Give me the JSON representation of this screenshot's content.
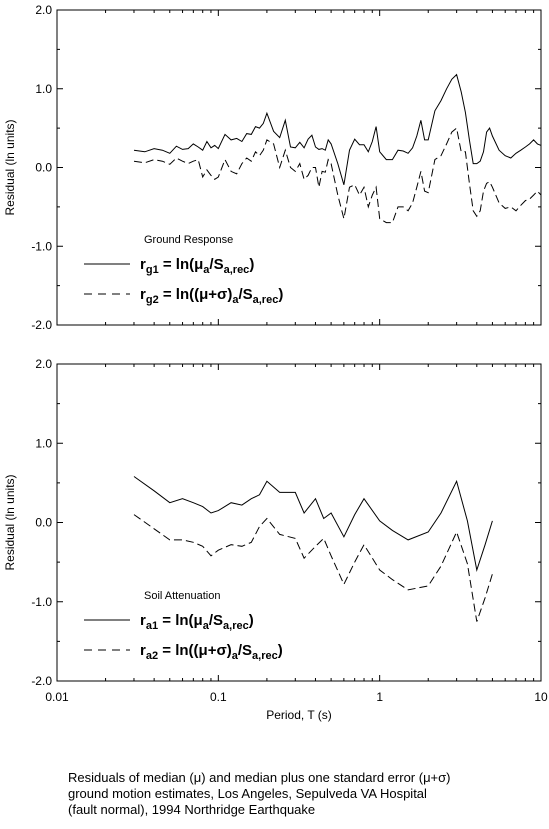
{
  "chart_data": [
    {
      "type": "line",
      "title": "",
      "xlabel": "",
      "ylabel": "Residual (ln units)",
      "xscale": "log",
      "xlim": [
        0.01,
        10
      ],
      "ylim": [
        -2.0,
        2.0
      ],
      "xticks": [
        0.01,
        0.1,
        1,
        10
      ],
      "xtick_labels": [
        "",
        "",
        "",
        ""
      ],
      "yticks": [
        2.0,
        1.0,
        0.0,
        -1.0,
        -2.0
      ],
      "ytick_labels": [
        "2.0",
        "1.0",
        "0.0",
        "-1.0",
        "-2.0"
      ],
      "grid": false,
      "legend": {
        "title": "Ground Response",
        "placement": "bottom-left",
        "entries": [
          {
            "sym": "r",
            "sub": "g1",
            "eq": " = ln(",
            "greek": "μ",
            "sub2": "a",
            "mid": "/S",
            "sub3": "a,rec",
            "close": ")"
          },
          {
            "sym": "r",
            "sub": "g2",
            "eq": " = ln((",
            "greek": "μ+σ",
            "paren": ")",
            "sub2": "a",
            "mid": "/S",
            "sub3": "a,rec",
            "close": ")"
          }
        ]
      },
      "series": [
        {
          "name": "rg1",
          "dash": "solid",
          "x": [
            0.03,
            0.035,
            0.04,
            0.045,
            0.05,
            0.055,
            0.06,
            0.065,
            0.07,
            0.075,
            0.08,
            0.085,
            0.09,
            0.095,
            0.1,
            0.11,
            0.12,
            0.13,
            0.14,
            0.15,
            0.16,
            0.17,
            0.18,
            0.19,
            0.2,
            0.22,
            0.24,
            0.26,
            0.28,
            0.3,
            0.32,
            0.34,
            0.36,
            0.38,
            0.4,
            0.42,
            0.44,
            0.46,
            0.48,
            0.5,
            0.55,
            0.6,
            0.65,
            0.7,
            0.75,
            0.8,
            0.85,
            0.9,
            0.95,
            1.0,
            1.1,
            1.2,
            1.3,
            1.4,
            1.5,
            1.6,
            1.7,
            1.8,
            1.9,
            2.0,
            2.2,
            2.4,
            2.6,
            2.8,
            3.0,
            3.2,
            3.4,
            3.6,
            3.8,
            4.0,
            4.2,
            4.4,
            4.6,
            4.8,
            5.0,
            5.5,
            6.0,
            6.5,
            7.0,
            7.5,
            8.0,
            8.5,
            9.0,
            9.5,
            10.0
          ],
          "y": [
            0.22,
            0.2,
            0.24,
            0.22,
            0.18,
            0.27,
            0.23,
            0.24,
            0.3,
            0.26,
            0.22,
            0.33,
            0.25,
            0.28,
            0.24,
            0.42,
            0.35,
            0.37,
            0.33,
            0.43,
            0.42,
            0.52,
            0.5,
            0.56,
            0.69,
            0.46,
            0.38,
            0.6,
            0.26,
            0.25,
            0.32,
            0.25,
            0.36,
            0.41,
            0.26,
            0.23,
            0.24,
            0.22,
            0.35,
            0.3,
            0.05,
            -0.22,
            0.22,
            0.36,
            0.29,
            0.29,
            0.2,
            0.33,
            0.52,
            0.2,
            0.1,
            0.1,
            0.22,
            0.21,
            0.18,
            0.25,
            0.4,
            0.6,
            0.35,
            0.35,
            0.72,
            0.85,
            1.0,
            1.12,
            1.18,
            0.96,
            0.7,
            0.35,
            0.05,
            0.05,
            0.08,
            0.2,
            0.45,
            0.5,
            0.4,
            0.22,
            0.15,
            0.12,
            0.18,
            0.22,
            0.26,
            0.3,
            0.35,
            0.3,
            0.28
          ]
        },
        {
          "name": "rg2",
          "dash": "dashed",
          "x": [
            0.03,
            0.035,
            0.04,
            0.045,
            0.05,
            0.055,
            0.06,
            0.065,
            0.07,
            0.075,
            0.08,
            0.085,
            0.09,
            0.095,
            0.1,
            0.11,
            0.12,
            0.13,
            0.14,
            0.15,
            0.16,
            0.17,
            0.18,
            0.19,
            0.2,
            0.22,
            0.24,
            0.26,
            0.28,
            0.3,
            0.32,
            0.34,
            0.36,
            0.38,
            0.4,
            0.42,
            0.44,
            0.46,
            0.48,
            0.5,
            0.55,
            0.6,
            0.65,
            0.7,
            0.75,
            0.8,
            0.85,
            0.9,
            0.95,
            1.0,
            1.1,
            1.2,
            1.3,
            1.4,
            1.5,
            1.6,
            1.7,
            1.8,
            1.9,
            2.0,
            2.2,
            2.4,
            2.6,
            2.8,
            3.0,
            3.2,
            3.4,
            3.6,
            3.8,
            4.0,
            4.2,
            4.4,
            4.6,
            4.8,
            5.0,
            5.5,
            6.0,
            6.5,
            7.0,
            7.5,
            8.0,
            8.5,
            9.0,
            9.5,
            10.0
          ],
          "y": [
            0.08,
            0.06,
            0.1,
            0.08,
            0.04,
            0.12,
            0.08,
            0.05,
            0.08,
            0.1,
            -0.12,
            -0.03,
            -0.1,
            -0.15,
            -0.12,
            0.1,
            -0.05,
            -0.08,
            0.05,
            0.12,
            0.08,
            0.2,
            0.15,
            0.22,
            0.35,
            0.3,
            0.0,
            0.22,
            0.0,
            -0.05,
            0.05,
            -0.15,
            -0.1,
            0.0,
            0.0,
            -0.25,
            -0.05,
            -0.06,
            0.1,
            0.05,
            -0.35,
            -0.65,
            -0.25,
            -0.22,
            -0.35,
            -0.25,
            -0.5,
            -0.35,
            -0.25,
            -0.65,
            -0.7,
            -0.7,
            -0.5,
            -0.5,
            -0.55,
            -0.45,
            -0.25,
            -0.05,
            -0.3,
            -0.32,
            0.1,
            0.15,
            0.3,
            0.45,
            0.5,
            0.2,
            0.2,
            -0.2,
            -0.55,
            -0.62,
            -0.55,
            -0.3,
            -0.2,
            -0.18,
            -0.25,
            -0.45,
            -0.52,
            -0.5,
            -0.55,
            -0.48,
            -0.42,
            -0.4,
            -0.35,
            -0.3,
            -0.35
          ]
        }
      ]
    },
    {
      "type": "line",
      "title": "",
      "xlabel": "Period, T (s)",
      "ylabel": "Residual (ln units)",
      "xscale": "log",
      "xlim": [
        0.01,
        10
      ],
      "ylim": [
        -2.0,
        2.0
      ],
      "xticks": [
        0.01,
        0.1,
        1,
        10
      ],
      "xtick_labels": [
        "0.01",
        "0.1",
        "1",
        "10"
      ],
      "yticks": [
        2.0,
        1.0,
        0.0,
        -1.0,
        -2.0
      ],
      "ytick_labels": [
        "2.0",
        "1.0",
        "0.0",
        "-1.0",
        "-2.0"
      ],
      "grid": false,
      "legend": {
        "title": "Soil Attenuation",
        "placement": "bottom-left",
        "entries": [
          {
            "sym": "r",
            "sub": "a1",
            "eq": " = ln(",
            "greek": "μ",
            "sub2": "a",
            "mid": "/S",
            "sub3": "a,rec",
            "close": ")"
          },
          {
            "sym": "r",
            "sub": "a2",
            "eq": " = ln((",
            "greek": "μ+σ",
            "paren": ")",
            "sub2": "a",
            "mid": "/S",
            "sub3": "a,rec",
            "close": ")"
          }
        ]
      },
      "series": [
        {
          "name": "ra1",
          "dash": "solid",
          "x": [
            0.03,
            0.04,
            0.05,
            0.06,
            0.07,
            0.08,
            0.09,
            0.1,
            0.12,
            0.14,
            0.16,
            0.18,
            0.2,
            0.24,
            0.3,
            0.34,
            0.4,
            0.45,
            0.5,
            0.6,
            0.7,
            0.8,
            1.0,
            1.2,
            1.5,
            2.0,
            2.4,
            3.0,
            3.5,
            4.0,
            4.5,
            5.0
          ],
          "y": [
            0.58,
            0.4,
            0.25,
            0.3,
            0.25,
            0.2,
            0.12,
            0.15,
            0.25,
            0.22,
            0.3,
            0.35,
            0.52,
            0.38,
            0.38,
            0.12,
            0.3,
            0.05,
            0.12,
            -0.18,
            0.1,
            0.3,
            0.02,
            -0.1,
            -0.22,
            -0.12,
            0.12,
            0.52,
            0.02,
            -0.6,
            -0.28,
            0.02
          ]
        },
        {
          "name": "ra2",
          "dash": "dashed",
          "x": [
            0.03,
            0.04,
            0.05,
            0.06,
            0.07,
            0.08,
            0.09,
            0.1,
            0.12,
            0.14,
            0.16,
            0.18,
            0.2,
            0.24,
            0.3,
            0.34,
            0.4,
            0.45,
            0.5,
            0.6,
            0.7,
            0.8,
            1.0,
            1.2,
            1.5,
            2.0,
            2.4,
            3.0,
            3.5,
            4.0,
            4.5,
            5.0
          ],
          "y": [
            0.1,
            -0.08,
            -0.22,
            -0.22,
            -0.25,
            -0.3,
            -0.42,
            -0.35,
            -0.28,
            -0.3,
            -0.25,
            -0.05,
            0.05,
            -0.15,
            -0.2,
            -0.45,
            -0.3,
            -0.2,
            -0.42,
            -0.78,
            -0.5,
            -0.28,
            -0.6,
            -0.72,
            -0.85,
            -0.8,
            -0.55,
            -0.12,
            -0.52,
            -1.25,
            -0.95,
            -0.65
          ]
        }
      ]
    }
  ],
  "caption": [
    "Residuals of median (μ) and median plus one standard error (μ+σ)",
    "ground motion estimates, Los Angeles, Sepulveda VA Hospital",
    "(fault normal), 1994 Northridge Earthquake"
  ]
}
